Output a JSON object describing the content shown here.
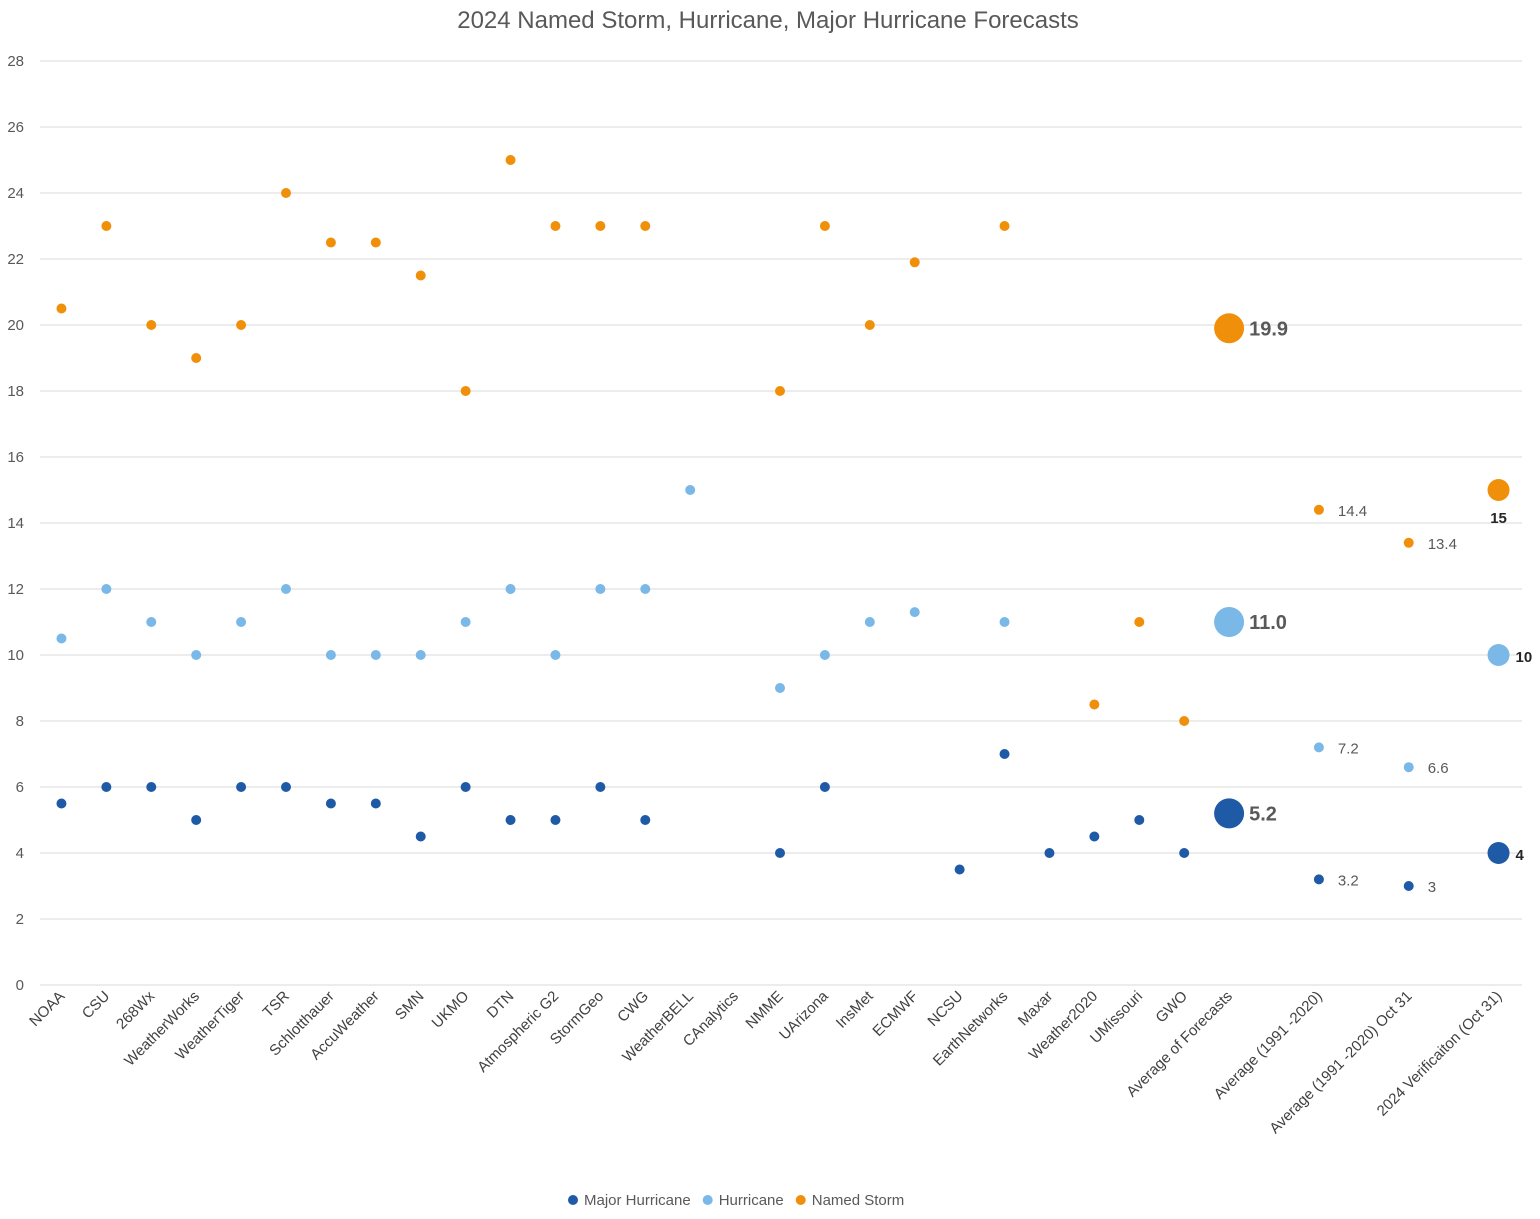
{
  "chart_data": {
    "type": "scatter",
    "title": "2024 Named Storm, Hurricane, Major Hurricane Forecasts",
    "xlabel": "",
    "ylabel": "",
    "ylim": [
      0,
      28
    ],
    "yticks": [
      0,
      2,
      4,
      6,
      8,
      10,
      12,
      14,
      16,
      18,
      20,
      22,
      24,
      26,
      28
    ],
    "grid": true,
    "legend_placement": "bottom",
    "categories": [
      "NOAA",
      "CSU",
      "268Wx",
      "WeatherWorks",
      "WeatherTiger",
      "TSR",
      "Schlotthauer",
      "AccuWeather",
      "SMN",
      "UKMO",
      "DTN",
      "Atmospheric G2",
      "StormGeo",
      "CWG",
      "WeatherBELL",
      "CAnalytics",
      "NMME",
      "UArizona",
      "InsMet",
      "ECMWF",
      "NCSU",
      "EarthNetworks",
      "Maxar",
      "Weather2020",
      "UMissouri",
      "GWO",
      "Average of Forecasts",
      "",
      "Average (1991 -2020)",
      "",
      "Average (1991 -2020) Oct 31",
      "",
      "2024 Verificaiton (Oct 31)"
    ],
    "series": [
      {
        "name": "Major Hurricane",
        "color": "#1f5aa6",
        "values": [
          5.5,
          6,
          6,
          5,
          6,
          6,
          5.5,
          5.5,
          4.5,
          6,
          5,
          5,
          6,
          5,
          null,
          null,
          4,
          6,
          null,
          null,
          3.5,
          7,
          4,
          4.5,
          5,
          4,
          5.2,
          null,
          3.2,
          null,
          3,
          null,
          4
        ]
      },
      {
        "name": "Hurricane",
        "color": "#7ab8e8",
        "values": [
          10.5,
          12,
          11,
          10,
          11,
          12,
          10,
          10,
          10,
          11,
          12,
          10,
          12,
          12,
          15,
          null,
          9,
          10,
          11,
          11.3,
          null,
          11,
          null,
          null,
          null,
          null,
          11.0,
          null,
          7.2,
          null,
          6.6,
          null,
          10
        ]
      },
      {
        "name": "Named Storm",
        "color": "#f0900a",
        "values": [
          20.5,
          23,
          20,
          19,
          20,
          24,
          22.5,
          22.5,
          21.5,
          18,
          25,
          23,
          23,
          23,
          null,
          null,
          18,
          23,
          20,
          21.9,
          null,
          23,
          null,
          8.5,
          11,
          8,
          19.9,
          null,
          14.4,
          null,
          13.4,
          null,
          15
        ]
      }
    ],
    "data_labels": [
      {
        "category": "Average of Forecasts",
        "series": "Named Storm",
        "text": "19.9"
      },
      {
        "category": "Average of Forecasts",
        "series": "Hurricane",
        "text": "11.0"
      },
      {
        "category": "Average of Forecasts",
        "series": "Major Hurricane",
        "text": "5.2"
      },
      {
        "category": "Average (1991 -2020)",
        "series": "Named Storm",
        "text": "14.4"
      },
      {
        "category": "Average (1991 -2020)",
        "series": "Hurricane",
        "text": "7.2"
      },
      {
        "category": "Average (1991 -2020)",
        "series": "Major Hurricane",
        "text": "3.2"
      },
      {
        "category": "Average (1991 -2020) Oct 31",
        "series": "Named Storm",
        "text": "13.4"
      },
      {
        "category": "Average (1991 -2020) Oct 31",
        "series": "Hurricane",
        "text": "6.6"
      },
      {
        "category": "Average (1991 -2020) Oct 31",
        "series": "Major Hurricane",
        "text": "3"
      },
      {
        "category": "2024 Verificaiton (Oct 31)",
        "series": "Named Storm",
        "text": "15"
      },
      {
        "category": "2024 Verificaiton (Oct 31)",
        "series": "Hurricane",
        "text": "10"
      },
      {
        "category": "2024 Verificaiton (Oct 31)",
        "series": "Major Hurricane",
        "text": "4"
      }
    ]
  }
}
